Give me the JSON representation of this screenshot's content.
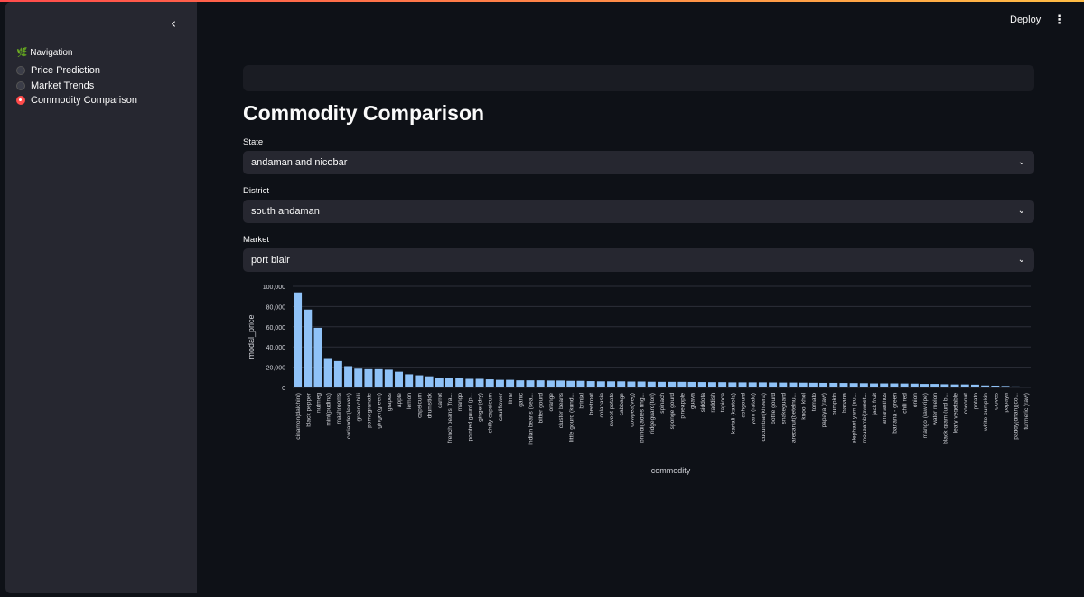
{
  "sidebar": {
    "collapse_icon": "chevron-left-icon",
    "nav_title": "🌿 Navigation",
    "items": [
      {
        "label": "Price Prediction",
        "selected": false
      },
      {
        "label": "Market Trends",
        "selected": false
      },
      {
        "label": "Commodity Comparison",
        "selected": true
      }
    ]
  },
  "header": {
    "deploy_label": "Deploy",
    "menu_icon": "kebab-menu-icon"
  },
  "main": {
    "title": "Commodity Comparison",
    "state": {
      "label": "State",
      "value": "andaman and nicobar"
    },
    "district": {
      "label": "District",
      "value": "south andaman"
    },
    "market": {
      "label": "Market",
      "value": "port blair"
    }
  },
  "colors": {
    "bar": "#8fc2f7",
    "accent": "#ff4b4b",
    "background": "#0e1117",
    "sidebar": "#262730"
  },
  "chart_data": {
    "type": "bar",
    "xlabel": "commodity",
    "ylabel": "modal_price",
    "ylim": [
      0,
      100000
    ],
    "yticks": [
      "0",
      "20,000",
      "40,000",
      "60,000",
      "80,000",
      "100,000"
    ],
    "categories": [
      "cinamon(dalchini)",
      "black pepper",
      "nutmeg",
      "mint(pudina)",
      "mashrooms",
      "coriander(leaves)",
      "green chilli",
      "pomegranate",
      "ginger(green)",
      "grapes",
      "apple",
      "lemon",
      "capsicum",
      "drumstick",
      "carrot",
      "french beans (fra...",
      "mango",
      "pointed gourd (p...",
      "ginger(dry)",
      "chilly capsicum",
      "cauliflower",
      "lime",
      "garlic",
      "indian beans (sea...",
      "bitter gourd",
      "orange",
      "cluster beans",
      "little gourd (kund...",
      "brinjal",
      "beetroot",
      "colacasia",
      "sweet potato",
      "cabbage",
      "cowpea(veg)",
      "bhindi(ladies fing...",
      "ridgeguard(tori)",
      "spinach",
      "sponge gourd",
      "pineapple",
      "guava",
      "siddota",
      "raddish",
      "tapioca",
      "kartali (kantola)",
      "ashgourd",
      "yam (ratalu)",
      "cucumbar(kheera)",
      "bottle gourd",
      "snakeguard",
      "arecanut(betelnu...",
      "knool khol",
      "tomato",
      "papaya (raw)",
      "pumpkin",
      "banana",
      "elephant yam (su...",
      "mousambi(sweet...",
      "jack fruit",
      "amaranthus",
      "banana - green",
      "chili red",
      "onion",
      "mango (raw-ripe)",
      "water melon",
      "black gram (urd b...",
      "leafy vegetable",
      "coconut",
      "potato",
      "white pumpkin",
      "cloves",
      "papaya",
      "paddy(dhan)(co...",
      "turmeric (raw)"
    ],
    "values": [
      94000,
      77000,
      59000,
      29000,
      26000,
      21000,
      18500,
      18000,
      18000,
      17500,
      15500,
      13000,
      12000,
      11000,
      9500,
      9000,
      9000,
      8500,
      8500,
      8000,
      7500,
      7500,
      7000,
      7000,
      7000,
      6800,
      6800,
      6500,
      6500,
      6200,
      6000,
      6000,
      6000,
      5800,
      5800,
      5600,
      5500,
      5500,
      5500,
      5400,
      5300,
      5200,
      5200,
      5000,
      5000,
      5000,
      5000,
      4900,
      4800,
      4800,
      4700,
      4600,
      4500,
      4500,
      4400,
      4300,
      4200,
      4000,
      4000,
      4000,
      3900,
      3800,
      3500,
      3500,
      3200,
      3000,
      3000,
      2800,
      2000,
      1800,
      1500,
      1000,
      600
    ]
  }
}
